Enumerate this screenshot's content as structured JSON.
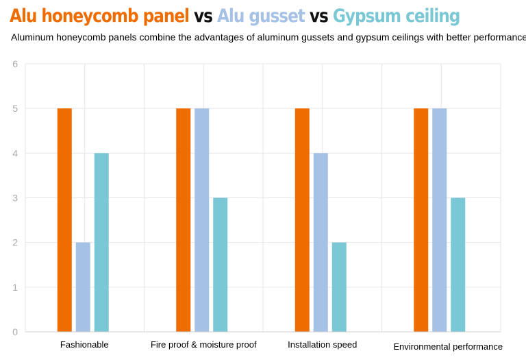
{
  "title": {
    "part1": "Alu honeycomb panel",
    "vs1": " vs ",
    "part2": "Alu gusset",
    "vs2": " vs ",
    "part3": "Gypsum ceiling"
  },
  "subtitle": "Aluminum honeycomb panels combine the advantages of aluminum gussets and gypsum ceilings with better performance",
  "colors": {
    "series1": "#ef6c00",
    "series2": "#a5c1e6",
    "series3": "#7ac8d6",
    "vs": "#111111",
    "grid": "#e6e6e6",
    "tick_label": "#aaaaaa"
  },
  "chart_data": {
    "type": "bar",
    "title": "Alu honeycomb panel vs Alu gusset vs Gypsum ceiling",
    "categories": [
      "Fashionable",
      "Fire proof & moisture proof",
      "Installation speed",
      "Environmental performance"
    ],
    "series": [
      {
        "name": "Alu honeycomb panel",
        "values": [
          5,
          5,
          5,
          5
        ]
      },
      {
        "name": "Alu gusset",
        "values": [
          2,
          5,
          4,
          5
        ]
      },
      {
        "name": "Gypsum ceiling",
        "values": [
          4,
          3,
          2,
          3
        ]
      }
    ],
    "xlabel": "",
    "ylabel": "",
    "ylim": [
      0,
      6
    ],
    "yticks": [
      "0",
      "1",
      "2",
      "3",
      "4",
      "5",
      "6"
    ],
    "grid": true
  }
}
